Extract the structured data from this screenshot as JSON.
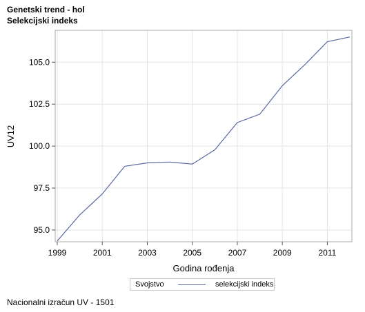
{
  "header": {
    "title_line1": "Genetski trend - hol",
    "title_line2": "Selekcijski indeks"
  },
  "footnote": "Nacionalni izračun UV - 1501",
  "chart_data": {
    "type": "line",
    "xlabel": "Godina rođenja",
    "ylabel": "UV12",
    "xlim": [
      1999,
      2012
    ],
    "ylim": [
      94.3,
      106.9
    ],
    "x_ticks": [
      1999,
      2001,
      2003,
      2005,
      2007,
      2009,
      2011
    ],
    "x_tick_labels": [
      "1999",
      "2001",
      "2003",
      "2005",
      "2007",
      "2009",
      "2011"
    ],
    "y_ticks": [
      95.0,
      97.5,
      100.0,
      102.5,
      105.0
    ],
    "y_tick_labels": [
      "95.0",
      "97.5",
      "100.0",
      "102.5",
      "105.0"
    ],
    "grid": true,
    "legend": {
      "position": "bottom-center",
      "title": "Svojstvo",
      "entries": [
        "selekcijski indeks"
      ]
    },
    "series": [
      {
        "name": "selekcijski indeks",
        "color": "#5b6aa0",
        "x": [
          1999,
          2000,
          2001,
          2002,
          2003,
          2004,
          2005,
          2006,
          2007,
          2008,
          2009,
          2010,
          2011,
          2012
        ],
        "y": [
          94.35,
          95.9,
          97.15,
          98.8,
          99.0,
          99.05,
          98.93,
          99.78,
          101.4,
          101.9,
          103.6,
          104.85,
          106.22,
          106.5
        ]
      }
    ]
  }
}
